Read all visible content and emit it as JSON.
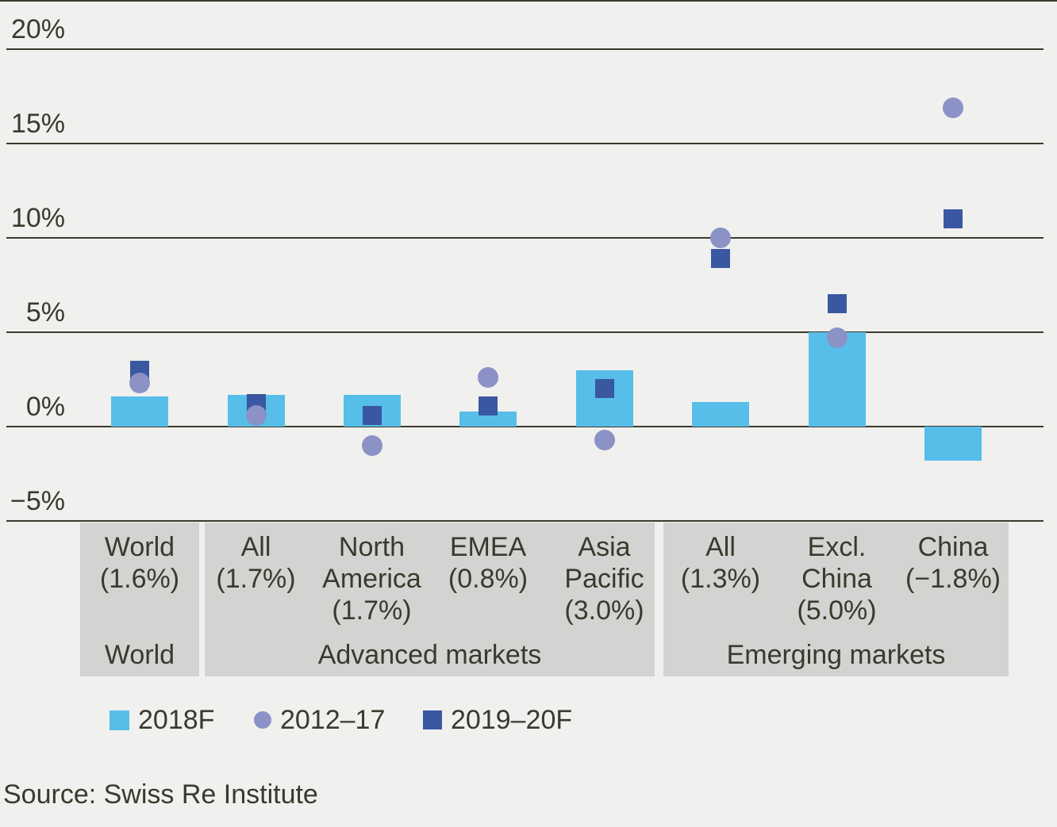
{
  "source": "Source: Swiss Re Institute",
  "colors": {
    "background": "#f0f0ee",
    "panel": "#d3d3d1",
    "text": "#3b392d",
    "grid": "#3c3a2e",
    "bar": "#57bee9",
    "circle": "#8b92c6",
    "square": "#3a58a2"
  },
  "legend": [
    {
      "label": "2018F",
      "marker": "bar"
    },
    {
      "label": "2012–17",
      "marker": "circle"
    },
    {
      "label": "2019–20F",
      "marker": "square"
    }
  ],
  "chart_data": {
    "type": "bar",
    "title": "",
    "xlabel": "",
    "ylabel": "",
    "ylim": [
      -5,
      20
    ],
    "grid": true,
    "legend_position": "bottom",
    "yticks": [
      {
        "label": "20%",
        "value": 20
      },
      {
        "label": "15%",
        "value": 15
      },
      {
        "label": "10%",
        "value": 10
      },
      {
        "label": "5%",
        "value": 5
      },
      {
        "label": "0%",
        "value": 0
      },
      {
        "label": "−5%",
        "value": -5
      }
    ],
    "categories": [
      {
        "name": "World",
        "lines": [
          "World",
          "(1.6%)"
        ]
      },
      {
        "name": "All",
        "lines": [
          "All",
          "(1.7%)"
        ]
      },
      {
        "name": "North America",
        "lines": [
          "North",
          "America",
          "(1.7%)"
        ]
      },
      {
        "name": "EMEA",
        "lines": [
          "EMEA",
          "(0.8%)"
        ]
      },
      {
        "name": "Asia Pacific",
        "lines": [
          "Asia",
          "Pacific",
          "(3.0%)"
        ]
      },
      {
        "name": "All",
        "lines": [
          "All",
          "(1.3%)"
        ]
      },
      {
        "name": "Excl. China",
        "lines": [
          "Excl.",
          "China",
          "(5.0%)"
        ]
      },
      {
        "name": "China",
        "lines": [
          "China",
          "(−1.8%)"
        ]
      }
    ],
    "groups": [
      {
        "label": "World",
        "category_indexes": [
          0
        ]
      },
      {
        "label": "Advanced markets",
        "category_indexes": [
          1,
          2,
          3,
          4
        ]
      },
      {
        "label": "Emerging markets",
        "category_indexes": [
          5,
          6,
          7
        ]
      }
    ],
    "series": [
      {
        "name": "2018F",
        "style": "bar",
        "values": [
          1.6,
          1.7,
          1.7,
          0.8,
          3.0,
          1.3,
          5.0,
          -1.8
        ]
      },
      {
        "name": "2012–17",
        "style": "circle",
        "values": [
          2.3,
          0.6,
          -1.0,
          2.6,
          -0.7,
          10.0,
          4.7,
          16.9
        ]
      },
      {
        "name": "2019–20F",
        "style": "square",
        "values": [
          3.0,
          1.2,
          0.6,
          1.1,
          2.0,
          8.9,
          6.5,
          11.0
        ]
      }
    ]
  }
}
